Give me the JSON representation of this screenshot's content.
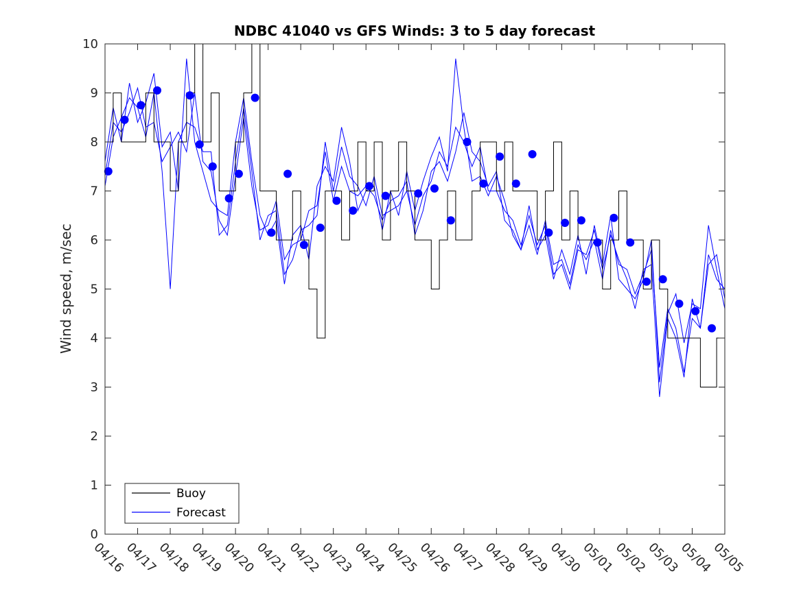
{
  "chart_data": {
    "type": "line",
    "title": "NDBC 41040 vs GFS Winds: 3 to 5 day forecast",
    "xlabel": "",
    "ylabel": "Wind speed, m/sec",
    "ylim": [
      0,
      10
    ],
    "yticks": [
      "0",
      "1",
      "2",
      "3",
      "4",
      "5",
      "6",
      "7",
      "8",
      "9",
      "10"
    ],
    "xlim_days": [
      0,
      19
    ],
    "xtick_labels": [
      "04/16",
      "04/17",
      "04/18",
      "04/19",
      "04/20",
      "04/21",
      "04/22",
      "04/23",
      "04/24",
      "04/25",
      "04/26",
      "04/27",
      "04/28",
      "04/29",
      "04/30",
      "05/01",
      "05/02",
      "05/03",
      "05/04",
      "05/05"
    ],
    "grid": false,
    "legend": {
      "placement": "bottom-left",
      "entries": [
        {
          "label": "Buoy",
          "color": "#000000"
        },
        {
          "label": "Forecast",
          "color": "#0000ff"
        }
      ]
    },
    "colors": {
      "buoy": "#000000",
      "forecast": "#0000ff",
      "marker": "#0000ff"
    },
    "buoy": {
      "name": "Buoy",
      "x": [
        0.0,
        0.25,
        0.5,
        0.75,
        1.0,
        1.25,
        1.5,
        1.75,
        2.0,
        2.25,
        2.5,
        2.75,
        3.0,
        3.25,
        3.5,
        3.75,
        4.0,
        4.25,
        4.5,
        4.75,
        5.0,
        5.25,
        5.5,
        5.75,
        6.0,
        6.25,
        6.5,
        6.75,
        7.0,
        7.25,
        7.5,
        7.75,
        8.0,
        8.25,
        8.5,
        8.75,
        9.0,
        9.25,
        9.5,
        9.75,
        10.0,
        10.25,
        10.5,
        10.75,
        11.0,
        11.25,
        11.5,
        11.75,
        12.0,
        12.25,
        12.5,
        12.75,
        13.0,
        13.25,
        13.5,
        13.75,
        14.0,
        14.25,
        14.5,
        14.75,
        15.0,
        15.25,
        15.5,
        15.75,
        16.0,
        16.25,
        16.5,
        16.75,
        17.0,
        17.25,
        17.5,
        17.75,
        18.0,
        18.25,
        18.5,
        18.75,
        19.0
      ],
      "y": [
        8,
        9,
        8,
        8,
        8,
        9,
        8,
        8,
        7,
        8,
        9,
        10,
        8,
        9,
        7,
        7,
        8,
        9,
        10,
        7,
        7,
        6,
        6,
        7,
        6,
        5,
        4,
        7,
        7,
        6,
        7,
        8,
        7,
        8,
        6,
        7,
        8,
        7,
        6,
        6,
        5,
        6,
        7,
        6,
        6,
        7,
        8,
        8,
        7,
        8,
        7,
        7,
        7,
        6,
        7,
        8,
        6,
        7,
        6,
        6,
        6,
        5,
        6,
        7,
        6,
        6,
        5,
        6,
        5,
        4,
        4,
        4,
        4,
        3,
        3,
        4,
        4
      ]
    },
    "forecast_runs": [
      {
        "name": "Forecast",
        "x": [
          0.0,
          0.25,
          0.5,
          0.75,
          1.0,
          1.25,
          1.5,
          1.75,
          2.0,
          2.25,
          2.5,
          2.75,
          3.0,
          3.25,
          3.5,
          3.75,
          4.0,
          4.25,
          4.5,
          4.75,
          5.0,
          5.25,
          5.5,
          5.75,
          6.0,
          6.25,
          6.5,
          6.75,
          7.0,
          7.25,
          7.5,
          7.75,
          8.0,
          8.25,
          8.5,
          8.75,
          9.0,
          9.25,
          9.5,
          9.75,
          10.0,
          10.25,
          10.5,
          10.75,
          11.0,
          11.25,
          11.5,
          11.75,
          12.0,
          12.25,
          12.5,
          12.75,
          13.0,
          13.25,
          13.5,
          13.75,
          14.0,
          14.25,
          14.5,
          14.75,
          15.0,
          15.25,
          15.5,
          15.75,
          16.0,
          16.25,
          16.5,
          16.75,
          17.0,
          17.25,
          17.5,
          17.75,
          18.0,
          18.25,
          18.5,
          18.75,
          19.0
        ],
        "y": [
          7.3,
          8.4,
          8.2,
          8.6,
          9.1,
          8.3,
          8.4,
          7.6,
          7.9,
          8.2,
          7.8,
          9.0,
          7.6,
          7.4,
          6.4,
          6.1,
          7.3,
          8.5,
          7.1,
          6.2,
          6.3,
          6.8,
          5.6,
          5.9,
          6.0,
          6.6,
          6.7,
          7.8,
          6.8,
          7.5,
          7.0,
          6.9,
          7.1,
          6.9,
          6.4,
          6.8,
          6.9,
          7.2,
          6.1,
          6.6,
          7.4,
          7.6,
          7.2,
          7.8,
          8.6,
          7.8,
          7.6,
          7.1,
          7.4,
          6.4,
          6.2,
          5.8,
          6.3,
          5.7,
          6.4,
          5.5,
          5.6,
          5.1,
          5.9,
          5.6,
          6.0,
          5.2,
          6.2,
          5.5,
          5.4,
          4.9,
          5.3,
          5.8,
          3.4,
          4.6,
          4.2,
          3.3,
          4.4,
          4.2,
          5.7,
          5.2,
          5.0
        ]
      },
      {
        "name": "Forecast",
        "x": [
          0.0,
          0.25,
          0.5,
          0.75,
          1.0,
          1.25,
          1.5,
          1.75,
          2.0,
          2.25,
          2.5,
          2.75,
          3.0,
          3.25,
          3.5,
          3.75,
          4.0,
          4.25,
          4.5,
          4.75,
          5.0,
          5.25,
          5.5,
          5.75,
          6.0,
          6.25,
          6.5,
          6.75,
          7.0,
          7.25,
          7.5,
          7.75,
          8.0,
          8.25,
          8.5,
          8.75,
          9.0,
          9.25,
          9.5,
          9.75,
          10.0,
          10.25,
          10.5,
          10.75,
          11.0,
          11.25,
          11.5,
          11.75,
          12.0,
          12.25,
          12.5,
          12.75,
          13.0,
          13.25,
          13.5,
          13.75,
          14.0,
          14.25,
          14.5,
          14.75,
          15.0,
          15.25,
          15.5,
          15.75,
          16.0,
          16.25,
          16.5,
          16.75,
          17.0,
          17.25,
          17.5,
          17.75,
          18.0,
          18.25,
          18.5,
          18.75,
          19.0
        ],
        "y": [
          7.6,
          8.7,
          8.0,
          9.2,
          8.4,
          8.8,
          9.4,
          7.9,
          8.2,
          7.0,
          9.7,
          8.0,
          7.4,
          6.8,
          6.6,
          6.5,
          8.0,
          8.9,
          7.6,
          6.5,
          6.1,
          6.4,
          5.1,
          6.1,
          6.3,
          5.6,
          7.1,
          7.5,
          7.2,
          8.3,
          7.6,
          6.6,
          7.0,
          7.1,
          6.2,
          7.0,
          6.5,
          7.4,
          6.6,
          7.2,
          7.7,
          8.1,
          7.4,
          9.7,
          8.3,
          7.2,
          7.3,
          6.9,
          7.3,
          6.8,
          6.1,
          5.8,
          6.7,
          5.8,
          6.1,
          5.2,
          5.8,
          5.3,
          6.1,
          5.3,
          6.3,
          5.5,
          6.5,
          5.2,
          5.0,
          4.8,
          5.2,
          6.0,
          3.1,
          4.5,
          4.9,
          3.9,
          4.7,
          4.6,
          6.3,
          5.4,
          4.6
        ]
      },
      {
        "name": "Forecast",
        "x": [
          0.0,
          0.25,
          0.5,
          0.75,
          1.0,
          1.25,
          1.5,
          1.75,
          2.0,
          2.25,
          2.5,
          2.75,
          3.0,
          3.25,
          3.5,
          3.75,
          4.0,
          4.25,
          4.5,
          4.75,
          5.0,
          5.25,
          5.5,
          5.75,
          6.0,
          6.25,
          6.5,
          6.75,
          7.0,
          7.25,
          7.5,
          7.75,
          8.0,
          8.25,
          8.5,
          8.75,
          9.0,
          9.25,
          9.5,
          9.75,
          10.0,
          10.25,
          10.5,
          10.75,
          11.0,
          11.25,
          11.5,
          11.75,
          12.0,
          12.25,
          12.5,
          12.75,
          13.0,
          13.25,
          13.5,
          13.75,
          14.0,
          14.25,
          14.5,
          14.75,
          15.0,
          15.25,
          15.5,
          15.75,
          16.0,
          16.25,
          16.5,
          16.75,
          17.0,
          17.25,
          17.5,
          17.75,
          18.0,
          18.25,
          18.5,
          18.75,
          19.0
        ],
        "y": [
          7.1,
          8.1,
          8.5,
          8.9,
          8.7,
          8.1,
          9.0,
          7.4,
          5.0,
          8.0,
          8.4,
          8.3,
          7.8,
          7.8,
          6.1,
          6.3,
          7.6,
          8.7,
          7.4,
          6.0,
          6.5,
          6.6,
          5.3,
          5.6,
          6.2,
          6.3,
          6.5,
          8.0,
          7.0,
          7.9,
          7.3,
          7.1,
          6.7,
          7.3,
          6.5,
          6.6,
          6.7,
          7.0,
          6.3,
          6.9,
          7.2,
          7.8,
          7.5,
          8.3,
          8.0,
          7.5,
          7.9,
          7.0,
          7.0,
          6.6,
          6.4,
          5.9,
          6.5,
          5.9,
          6.3,
          5.3,
          5.5,
          5.0,
          5.8,
          5.7,
          6.2,
          5.4,
          6.1,
          5.6,
          5.2,
          4.6,
          5.4,
          5.5,
          2.8,
          4.4,
          4.0,
          3.2,
          4.8,
          4.2,
          5.5,
          5.7,
          4.8
        ]
      }
    ],
    "forecast_markers": {
      "name": "Forecast",
      "x": [
        0.1,
        0.6,
        1.1,
        1.6,
        2.6,
        2.9,
        3.3,
        3.8,
        4.1,
        4.6,
        5.1,
        5.6,
        6.1,
        6.6,
        7.1,
        7.6,
        8.1,
        8.6,
        9.6,
        10.1,
        10.6,
        11.1,
        11.6,
        12.1,
        12.6,
        13.1,
        13.6,
        14.1,
        14.6,
        15.1,
        15.6,
        16.1,
        16.6,
        17.1,
        17.6,
        18.1,
        18.6
      ],
      "y": [
        7.4,
        8.45,
        8.75,
        9.05,
        8.95,
        7.95,
        7.5,
        6.85,
        7.35,
        8.9,
        6.15,
        7.35,
        5.9,
        6.25,
        6.8,
        6.6,
        7.1,
        6.9,
        6.95,
        7.05,
        6.4,
        8.0,
        7.15,
        7.7,
        7.15,
        7.75,
        6.15,
        6.35,
        6.4,
        5.95,
        6.45,
        5.95,
        5.15,
        5.2,
        4.7,
        4.55,
        4.2
      ]
    }
  }
}
